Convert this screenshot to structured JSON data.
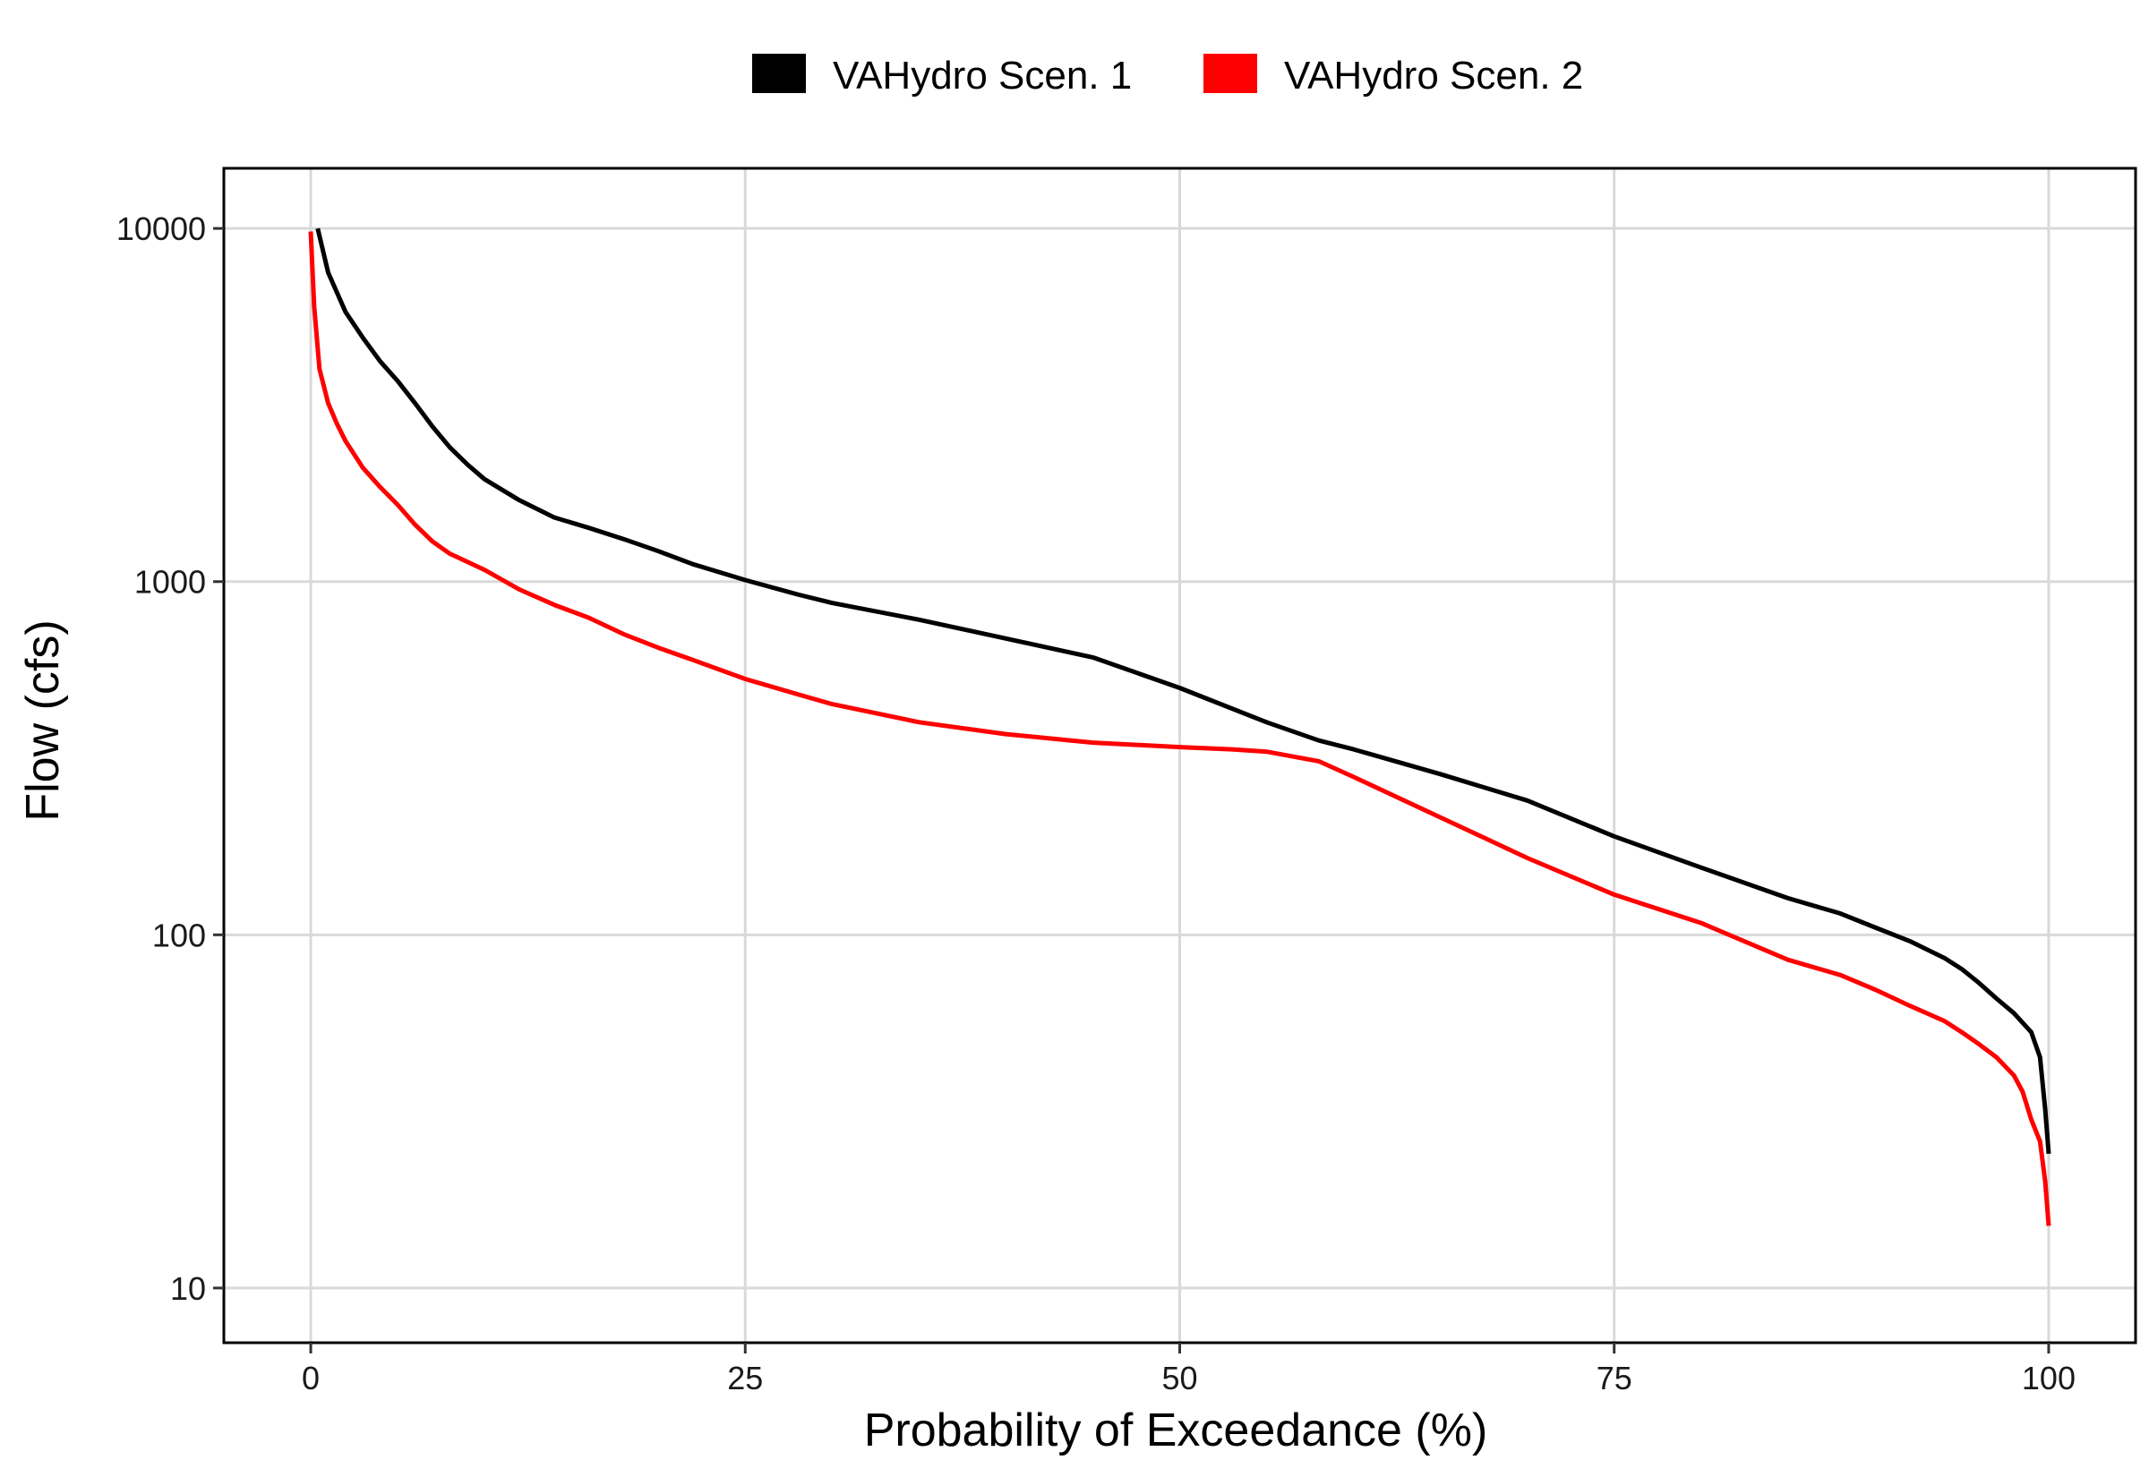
{
  "chart_data": {
    "type": "line",
    "title": "",
    "xlabel": "Probability of Exceedance (%)",
    "ylabel": "Flow (cfs)",
    "xlim": [
      -5,
      105
    ],
    "ylim": [
      7,
      14800
    ],
    "y_scale": "log",
    "x_ticks": [
      0,
      25,
      50,
      75,
      100
    ],
    "x_tick_labels": [
      "0",
      "25",
      "50",
      "75",
      "100"
    ],
    "y_ticks": [
      10,
      100,
      1000,
      10000
    ],
    "y_tick_labels": [
      "10",
      "100",
      "1000",
      "10000"
    ],
    "grid": true,
    "legend_position": "top",
    "series": [
      {
        "name": "VAHydro Scen. 1",
        "color": "#000000",
        "x": [
          0.4,
          1,
          2,
          3,
          4,
          5,
          6,
          7,
          8,
          9,
          10,
          12,
          14,
          16,
          18,
          20,
          22,
          25,
          28,
          30,
          35,
          40,
          45,
          50,
          55,
          58,
          60,
          65,
          70,
          75,
          80,
          85,
          88,
          90,
          92,
          94,
          95,
          96,
          97,
          98,
          99,
          99.5,
          99.8,
          100
        ],
        "values": [
          10000,
          7500,
          5800,
          4900,
          4200,
          3700,
          3200,
          2750,
          2400,
          2150,
          1950,
          1700,
          1520,
          1420,
          1320,
          1220,
          1120,
          1010,
          920,
          870,
          780,
          690,
          610,
          500,
          400,
          355,
          335,
          285,
          240,
          190,
          155,
          127,
          115,
          105,
          96,
          86,
          80,
          73,
          66,
          60,
          53,
          45,
          32,
          24
        ]
      },
      {
        "name": "VAHydro Scen. 2",
        "color": "#ff0000",
        "x": [
          0,
          0.2,
          0.5,
          1,
          1.5,
          2,
          3,
          4,
          5,
          6,
          7,
          8,
          10,
          12,
          14,
          16,
          18,
          20,
          22,
          25,
          28,
          30,
          35,
          40,
          45,
          50,
          53,
          55,
          58,
          60,
          65,
          70,
          75,
          80,
          85,
          88,
          90,
          92,
          94,
          95,
          96,
          97,
          98,
          98.5,
          99,
          99.5,
          99.8,
          100
        ],
        "values": [
          9800,
          6000,
          4000,
          3200,
          2800,
          2500,
          2100,
          1850,
          1650,
          1450,
          1300,
          1200,
          1080,
          950,
          860,
          790,
          710,
          650,
          600,
          530,
          480,
          450,
          400,
          370,
          350,
          340,
          335,
          330,
          310,
          280,
          215,
          165,
          130,
          108,
          85,
          77,
          70,
          63,
          57,
          53,
          49,
          45,
          40,
          36,
          30,
          26,
          20,
          15
        ]
      }
    ]
  }
}
